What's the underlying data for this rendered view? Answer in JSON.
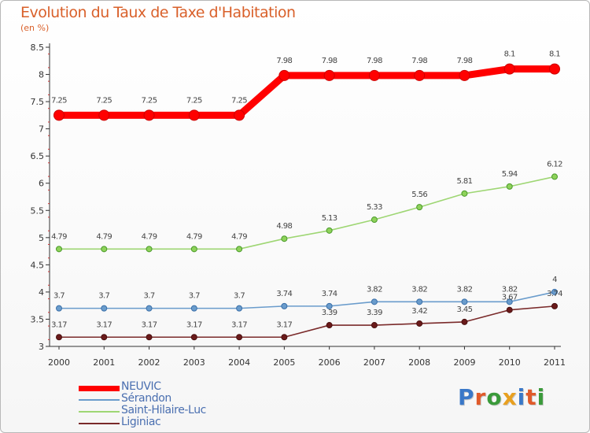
{
  "chart_data": {
    "type": "line",
    "title": "Evolution du Taux de Taxe d'Habitation",
    "subtitle": "(en %)",
    "x": [
      "2000",
      "2001",
      "2002",
      "2003",
      "2004",
      "2005",
      "2006",
      "2007",
      "2008",
      "2009",
      "2010",
      "2011"
    ],
    "ylim": [
      3,
      8.5
    ],
    "yticks": [
      "3",
      "3.5",
      "4",
      "4.5",
      "5",
      "5.5",
      "6",
      "6.5",
      "7",
      "7.5",
      "8",
      "8.5"
    ],
    "grid": false,
    "legend_position": "bottom-left",
    "series": [
      {
        "name": "NEUVIC",
        "color": "#ff0000",
        "values": [
          7.25,
          7.25,
          7.25,
          7.25,
          7.25,
          7.98,
          7.98,
          7.98,
          7.98,
          7.98,
          8.1,
          8.1
        ],
        "labels": [
          "7.25",
          "7.25",
          "7.25",
          "7.25",
          "7.25",
          "7.98",
          "7.98",
          "7.98",
          "7.98",
          "7.98",
          "8.1",
          "8.1"
        ]
      },
      {
        "name": "Sérandon",
        "color": "#6a9ccc",
        "values": [
          3.7,
          3.7,
          3.7,
          3.7,
          3.7,
          3.74,
          3.74,
          3.82,
          3.82,
          3.82,
          3.82,
          4
        ],
        "labels": [
          "3.7",
          "3.7",
          "3.7",
          "3.7",
          "3.7",
          "3.74",
          "3.74",
          "3.82",
          "3.82",
          "3.82",
          "3.82",
          "4"
        ]
      },
      {
        "name": "Saint-Hilaire-Luc",
        "color": "#9ed673",
        "values": [
          4.79,
          4.79,
          4.79,
          4.79,
          4.79,
          4.98,
          5.13,
          5.33,
          5.56,
          5.81,
          5.94,
          6.12
        ],
        "labels": [
          "4.79",
          "4.79",
          "4.79",
          "4.79",
          "4.79",
          "4.98",
          "5.13",
          "5.33",
          "5.56",
          "5.81",
          "5.94",
          "6.12"
        ]
      },
      {
        "name": "Liginiac",
        "color": "#7a2a2a",
        "values": [
          3.17,
          3.17,
          3.17,
          3.17,
          3.17,
          3.17,
          3.39,
          3.39,
          3.42,
          3.45,
          3.67,
          3.74
        ],
        "labels": [
          "3.17",
          "3.17",
          "3.17",
          "3.17",
          "3.17",
          "3.17",
          "3.39",
          "3.39",
          "3.42",
          "3.45",
          "3.67",
          "3.74"
        ]
      }
    ]
  },
  "legend": {
    "items": [
      {
        "label": "NEUVIC",
        "color": "#ff0000"
      },
      {
        "label": "Sérandon",
        "color": "#6a9ccc"
      },
      {
        "label": "Saint-Hilaire-Luc",
        "color": "#9ed673"
      },
      {
        "label": "Liginiac",
        "color": "#7a2a2a"
      }
    ]
  },
  "logo": {
    "text": "Proxiti",
    "colors": [
      "#3a78c8",
      "#e05a2a",
      "#3a9a3a",
      "#e8a020",
      "#3a78c8",
      "#e05a2a",
      "#3a9a3a"
    ]
  }
}
